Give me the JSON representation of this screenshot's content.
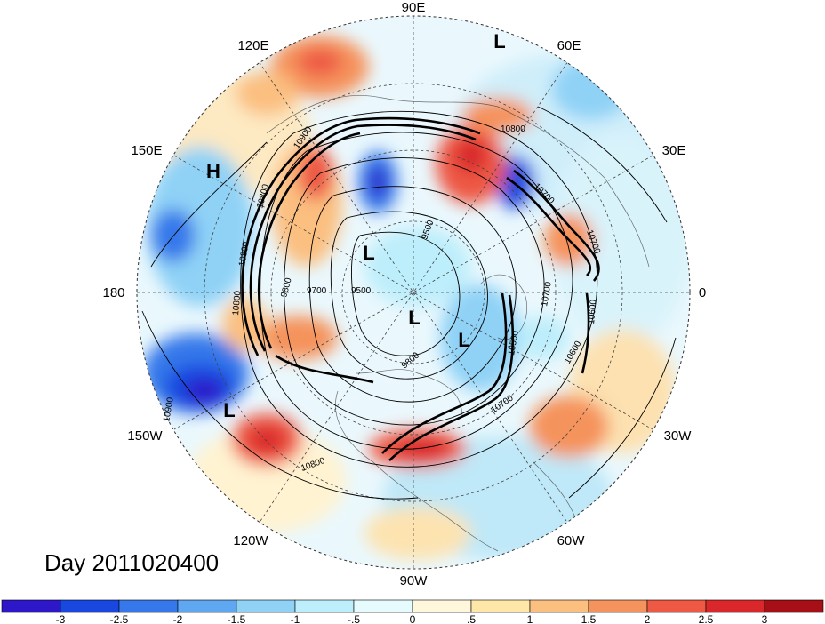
{
  "map": {
    "projection": "north polar stereographic",
    "longitude_labels": {
      "top": "90E",
      "upper_left": "120E",
      "upper_right": "60E",
      "left_upper": "150E",
      "right_upper": "30E",
      "left": "180",
      "right": "0",
      "left_lower": "150W",
      "right_lower": "30W",
      "lower_left": "120W",
      "lower_right": "60W",
      "bottom": "90W"
    },
    "pressure_centers": [
      {
        "symbol": "L",
        "location": "near 60E rim"
      },
      {
        "symbol": "H",
        "location": "near 150E, north Pacific"
      },
      {
        "symbol": "L",
        "location": "Siberia / Arctic interior"
      },
      {
        "symbol": "L",
        "location": "near pole"
      },
      {
        "symbol": "L",
        "location": "Labrador / Greenland"
      },
      {
        "symbol": "L",
        "location": "Gulf of Alaska"
      }
    ],
    "contour_labels": [
      "10900",
      "10800",
      "10700",
      "9800",
      "9700",
      "9500",
      "9500",
      "10500",
      "10600",
      "10600",
      "10700",
      "10800",
      "9800",
      "10700",
      "10900",
      "10800",
      "10800",
      "10700",
      "10800"
    ]
  },
  "title": "Day 2011020400",
  "colorbar": {
    "colors": [
      "#2d17c9",
      "#1848e0",
      "#3678ea",
      "#5fa7f0",
      "#8fd2f6",
      "#bdeefb",
      "#e6fbfd",
      "#fff7dc",
      "#ffe7a8",
      "#fbbf80",
      "#f5935c",
      "#ee5944",
      "#d9272b",
      "#a50f15"
    ],
    "tick_labels": [
      "-3",
      "-2.5",
      "-2",
      "-1.5",
      "-1",
      "-.5",
      "0",
      ".5",
      "1",
      "1.5",
      "2",
      "2.5",
      "3"
    ]
  },
  "colors": {
    "cold_anomaly": "#2d17c9",
    "warm_anomaly": "#d9272b",
    "neutral": "#ffffff",
    "contour": "#000000"
  }
}
